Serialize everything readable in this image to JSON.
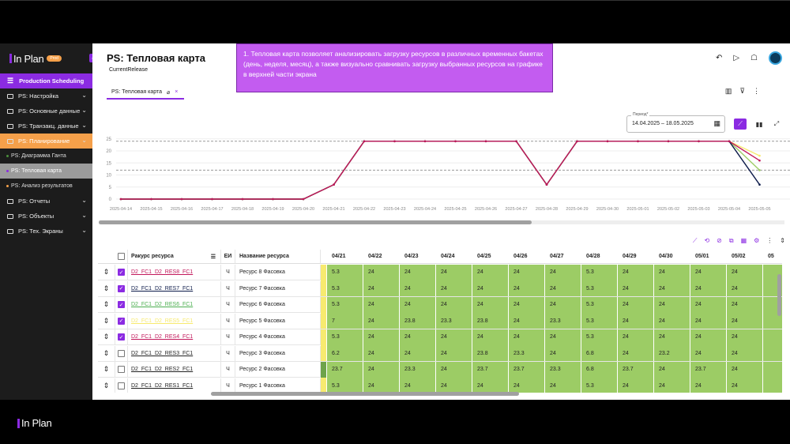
{
  "app": {
    "logo": "In Plan",
    "badge": "Prod",
    "footer_logo": "In Plan"
  },
  "sidebar": {
    "items": [
      {
        "label": "Production Scheduling",
        "state": "active"
      },
      {
        "label": "PS: Настройка"
      },
      {
        "label": "PS: Основные данные"
      },
      {
        "label": "PS: Транзакц. данные"
      },
      {
        "label": "PS: Планирование",
        "state": "orange"
      },
      {
        "label": "PS: Диаграмма Ганта",
        "sub": true,
        "dot": "#4a8f3c"
      },
      {
        "label": "PS: Тепловая карта",
        "sub": true,
        "dot": "#8b2be2",
        "selected": true
      },
      {
        "label": "PS: Анализ результатов",
        "sub": true,
        "dot": "#f5a04a"
      },
      {
        "label": "PS: Отчеты"
      },
      {
        "label": "PS: Объекты"
      },
      {
        "label": "PS: Тех. Экраны"
      }
    ]
  },
  "header": {
    "title": "PS: Тепловая карта",
    "subtitle": "CurrentRelease",
    "tab_label": "PS: Тепловая карта"
  },
  "tooltip": {
    "text": "1. Тепловая карта позволяет анализировать загрузку ресурсов в различных временных бакетах (день, неделя, месяц), а также визуально сравнивать загрузку выбранных ресурсов на графике в верхней части экрана"
  },
  "period": {
    "label": "Период*",
    "value": "14.04.2025 – 18.05.2025"
  },
  "colors": {
    "accent": "#8b2be2",
    "orange": "#f5a04a",
    "heat_green": "#9ccc65",
    "heat_yellow": "#f7ea6f",
    "heat_dark": "#6ea34a"
  },
  "chart_data": {
    "type": "line",
    "x": [
      "2025-04-14",
      "2025-04-15",
      "2025-04-16",
      "2025-04-17",
      "2025-04-18",
      "2025-04-19",
      "2025-04-20",
      "2025-04-21",
      "2025-04-22",
      "2025-04-23",
      "2025-04-24",
      "2025-04-25",
      "2025-04-26",
      "2025-04-27",
      "2025-04-28",
      "2025-04-29",
      "2025-04-30",
      "2025-05-01",
      "2025-05-02",
      "2025-05-03",
      "2025-05-04",
      "2025-05-05"
    ],
    "ylim": [
      0,
      25
    ],
    "yticks": [
      0,
      5,
      10,
      15,
      20,
      25
    ],
    "ref_lines": [
      24,
      12
    ],
    "series": [
      {
        "color": "#f7ea6f",
        "values": [
          0,
          0,
          0,
          0,
          0,
          0,
          0,
          6,
          24,
          24,
          24,
          24,
          24,
          24,
          6,
          24,
          24,
          24,
          24,
          24,
          24,
          18
        ]
      },
      {
        "color": "#9ccc65",
        "values": [
          0,
          0,
          0,
          0,
          0,
          0,
          0,
          6,
          24,
          24,
          24,
          24,
          24,
          24,
          6,
          24,
          24,
          24,
          24,
          24,
          24,
          12
        ]
      },
      {
        "color": "#0d1b4a",
        "values": [
          0,
          0,
          0,
          0,
          0,
          0,
          0,
          6,
          24,
          24,
          24,
          24,
          24,
          24,
          6,
          24,
          24,
          24,
          24,
          24,
          24,
          6
        ]
      },
      {
        "color": "#c2185b",
        "values": [
          0,
          0,
          0,
          0,
          0,
          0,
          0,
          6,
          24,
          24,
          24,
          24,
          24,
          24,
          6,
          24,
          24,
          24,
          24,
          24,
          24,
          16
        ]
      }
    ]
  },
  "grid": {
    "columns": {
      "ressource": "Ракурс ресурса",
      "ei": "ЕИ",
      "name": "Название ресурса"
    },
    "dates": [
      "04/21",
      "04/22",
      "04/23",
      "04/24",
      "04/25",
      "04/26",
      "04/27",
      "04/28",
      "04/29",
      "04/30",
      "05/01",
      "05/02",
      "05"
    ],
    "rows": [
      {
        "code": "D2_FC1_D2_RES8_FC1",
        "color": "#c2185b",
        "checked": true,
        "ei": "Ч",
        "name": "Ресурс 8 Фасовка",
        "values": [
          "5.3",
          "24",
          "24",
          "24",
          "24",
          "24",
          "24",
          "5.3",
          "24",
          "24",
          "24",
          "24",
          ""
        ]
      },
      {
        "code": "D2_FC1_D2_RES7_FC1",
        "color": "#0d1b4a",
        "checked": true,
        "ei": "Ч",
        "name": "Ресурс 7 Фасовка",
        "values": [
          "5.3",
          "24",
          "24",
          "24",
          "24",
          "24",
          "24",
          "5.3",
          "24",
          "24",
          "24",
          "24",
          ""
        ]
      },
      {
        "code": "D2_FC1_D2_RES6_FC1",
        "color": "#4caf50",
        "checked": true,
        "ei": "Ч",
        "name": "Ресурс 6 Фасовка",
        "values": [
          "5.3",
          "24",
          "24",
          "24",
          "24",
          "24",
          "24",
          "5.3",
          "24",
          "24",
          "24",
          "24",
          ""
        ]
      },
      {
        "code": "D2_FC1_D2_RES5_FC1",
        "color": "#f7ea6f",
        "checked": true,
        "ei": "Ч",
        "name": "Ресурс 5 Фасовка",
        "values": [
          "7",
          "24",
          "23.8",
          "23.3",
          "23.8",
          "24",
          "23.3",
          "5.3",
          "24",
          "24",
          "24",
          "24",
          ""
        ]
      },
      {
        "code": "D2_FC1_D2_RES4_FC1",
        "color": "#c2185b",
        "checked": true,
        "ei": "Ч",
        "name": "Ресурс 4 Фасовка",
        "values": [
          "5.3",
          "24",
          "24",
          "24",
          "24",
          "24",
          "24",
          "5.3",
          "24",
          "24",
          "24",
          "24",
          ""
        ]
      },
      {
        "code": "D2_FC1_D2_RES3_FC1",
        "color": "#222",
        "checked": false,
        "ei": "Ч",
        "name": "Ресурс 3 Фасовка",
        "values": [
          "6.2",
          "24",
          "24",
          "24",
          "23.8",
          "23.3",
          "24",
          "6.8",
          "24",
          "23.2",
          "24",
          "24",
          ""
        ]
      },
      {
        "code": "D2_FC1_D2_RES2_FC1",
        "color": "#222",
        "checked": false,
        "ei": "Ч",
        "name": "Ресурс 2 Фасовка",
        "values": [
          "23.7",
          "24",
          "23.3",
          "24",
          "23.7",
          "23.7",
          "23.3",
          "6.8",
          "23.7",
          "24",
          "23.7",
          "24",
          ""
        ]
      },
      {
        "code": "D2_FC1_D2_RES1_FC1",
        "color": "#222",
        "checked": false,
        "ei": "Ч",
        "name": "Ресурс 1 Фасовка",
        "values": [
          "5.3",
          "24",
          "24",
          "24",
          "24",
          "24",
          "24",
          "5.3",
          "24",
          "24",
          "24",
          "24",
          ""
        ]
      }
    ]
  }
}
